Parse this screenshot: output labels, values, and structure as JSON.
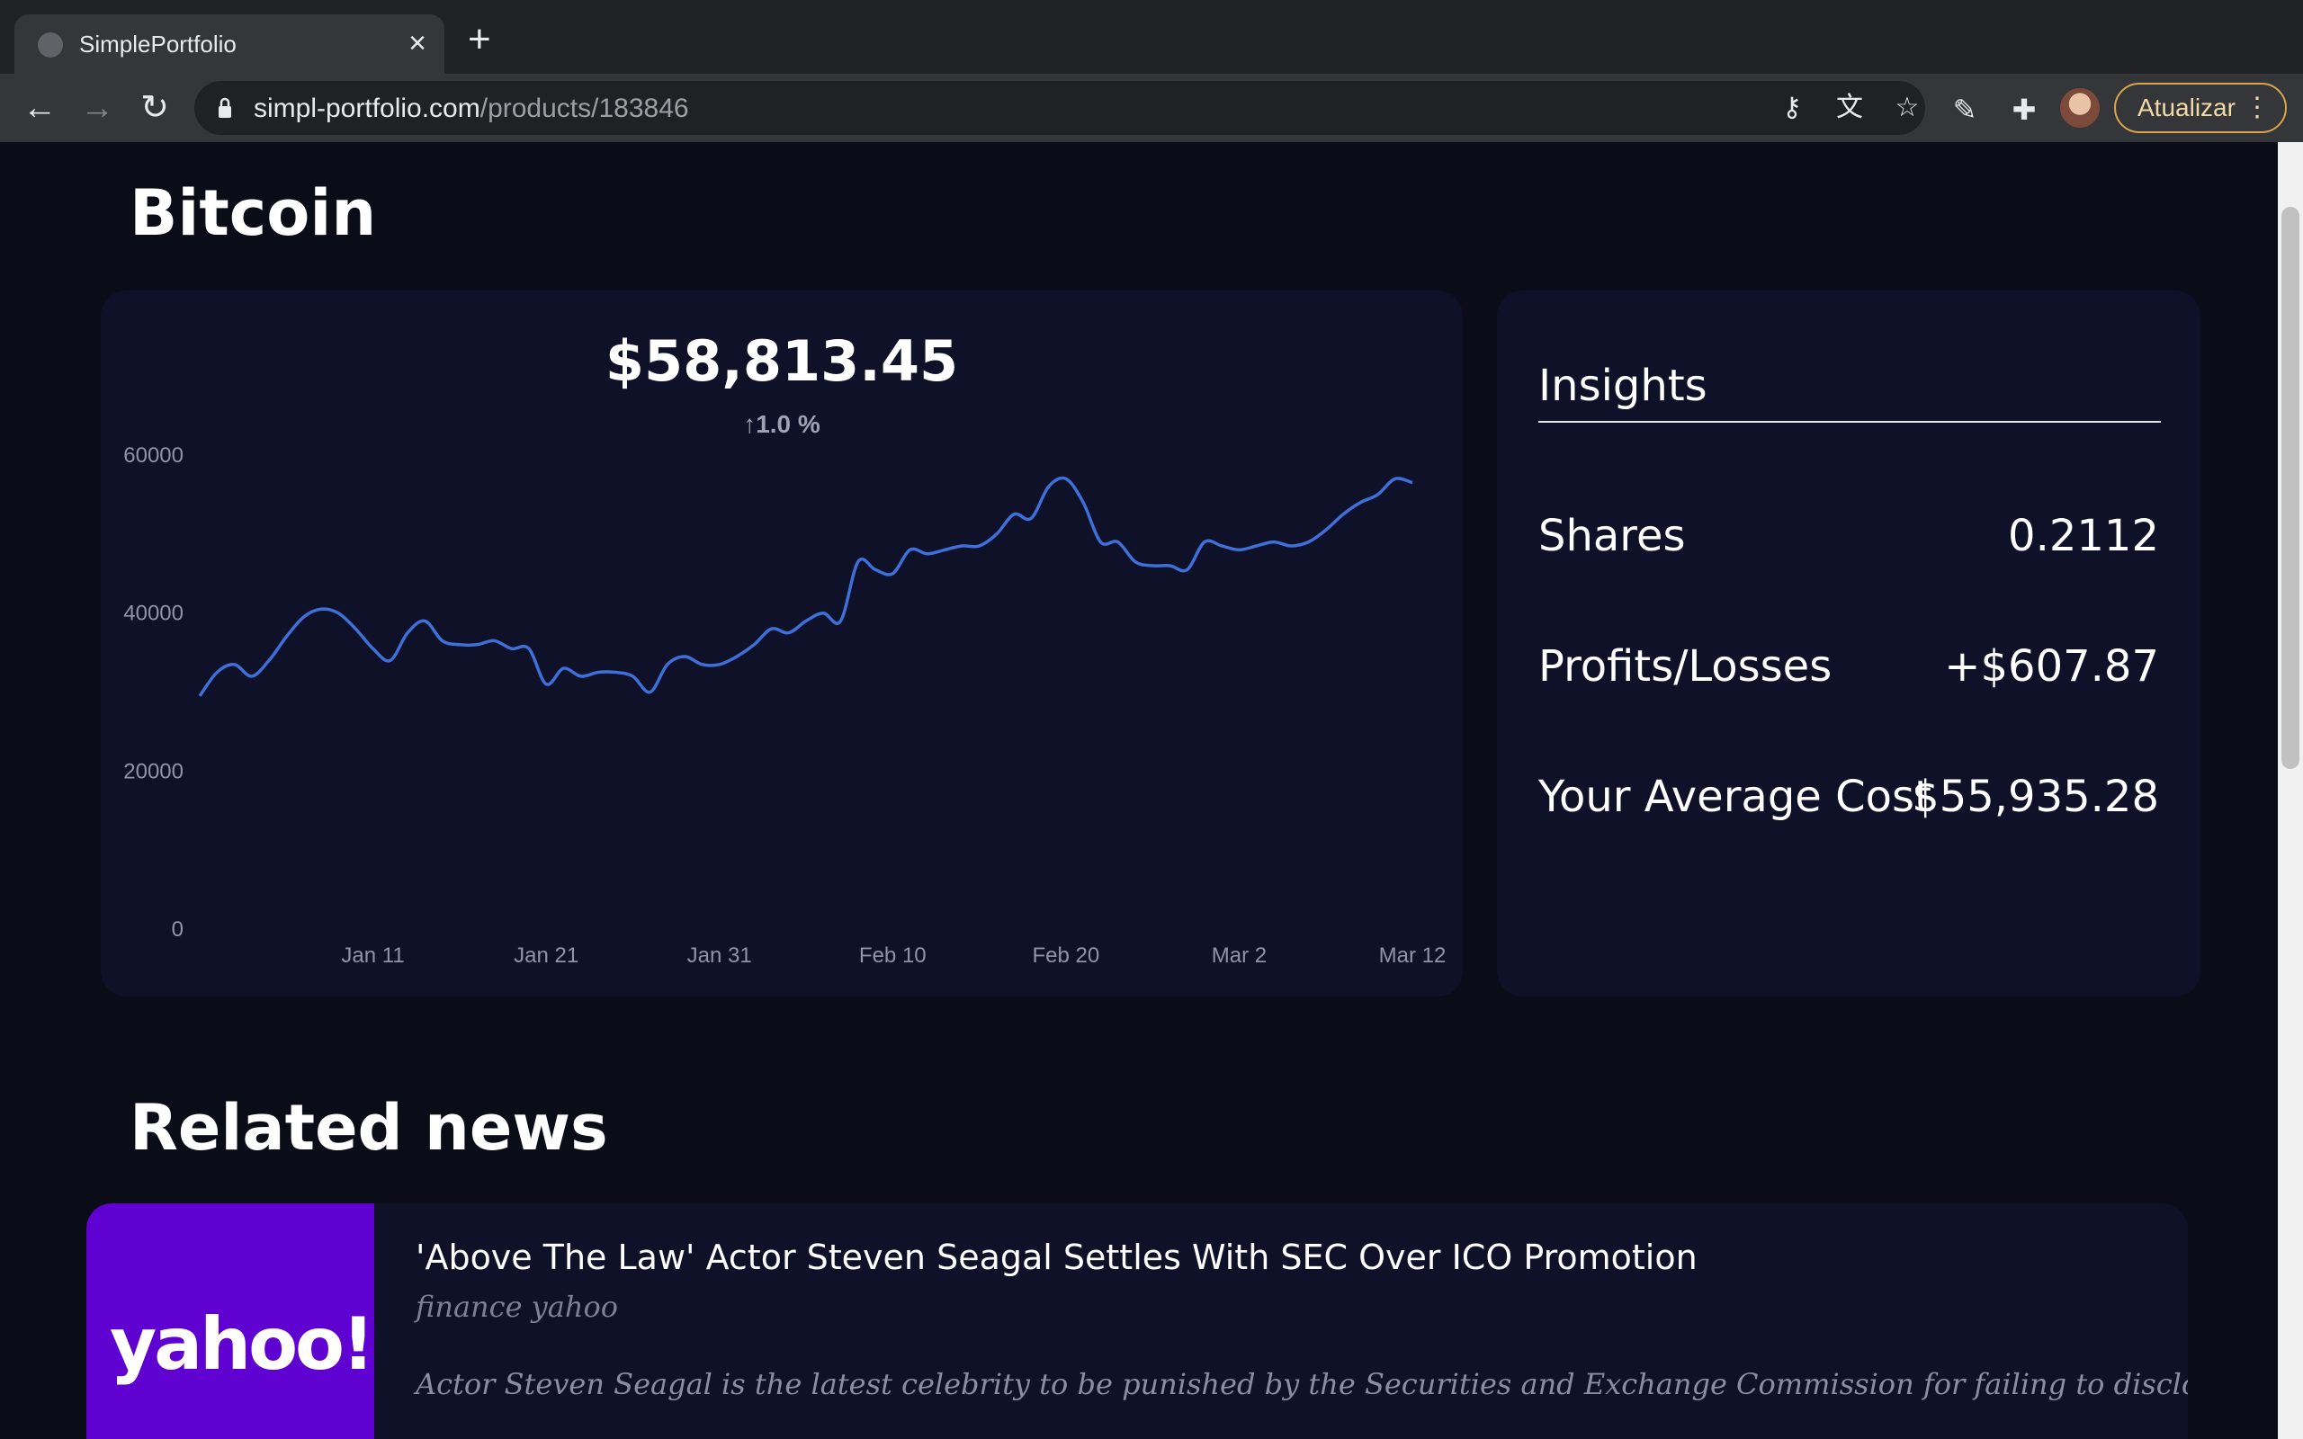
{
  "browser": {
    "tab_title": "SimplePortfolio",
    "url_host": "simpl-portfolio.com",
    "url_path": "/products/183846",
    "update_label": "Atualizar"
  },
  "asset": {
    "name": "Bitcoin",
    "price": "$58,813.45",
    "change": "1.0 %"
  },
  "insights": {
    "title": "Insights",
    "rows": [
      {
        "label": "Shares",
        "value": "0.2112"
      },
      {
        "label": "Profits/Losses",
        "value": "+$607.87"
      },
      {
        "label": "Your Average Cost",
        "value": "$55,935.28"
      }
    ]
  },
  "news": {
    "heading": "Related news",
    "items": [
      {
        "logo": "yahoo!",
        "title": "'Above The Law' Actor Steven Seagal Settles With SEC Over ICO Promotion",
        "source": "finance yahoo",
        "summary": "Actor Steven Seagal is the latest celebrity to be punished by the Securities and Exchange Commission for failing to disclose that he was being paid to ..."
      }
    ]
  },
  "colors": {
    "line": "#3f6fd8",
    "card": "#0e1128",
    "background": "#0a0c18",
    "update_border": "#d9a74a",
    "yahoo": "#5f01d1"
  },
  "chart_data": {
    "type": "line",
    "title": "",
    "xlabel": "",
    "ylabel": "",
    "ylim": [
      0,
      60000
    ],
    "yticks": [
      "60000",
      "40000",
      "20000",
      "0"
    ],
    "xticks": [
      "Jan 11",
      "Jan 21",
      "Jan 31",
      "Feb 10",
      "Feb 20",
      "Mar 2",
      "Mar 12"
    ],
    "xtick_days": [
      10,
      20,
      30,
      40,
      50,
      60,
      70
    ],
    "x_days": [
      0,
      1,
      2,
      3,
      4,
      5,
      6,
      7,
      8,
      9,
      10,
      11,
      12,
      13,
      14,
      15,
      16,
      17,
      18,
      19,
      20,
      21,
      22,
      23,
      24,
      25,
      26,
      27,
      28,
      29,
      30,
      31,
      32,
      33,
      34,
      35,
      36,
      37,
      38,
      39,
      40,
      41,
      42,
      43,
      44,
      45,
      46,
      47,
      48,
      49,
      50,
      51,
      52,
      53,
      54,
      55,
      56,
      57,
      58,
      59,
      60,
      61,
      62,
      63,
      64,
      65,
      66,
      67,
      68,
      69,
      70
    ],
    "series": [
      {
        "values": [
          29500,
          32500,
          33500,
          32000,
          34000,
          37000,
          39500,
          40500,
          40000,
          38000,
          35500,
          34000,
          37500,
          39000,
          36500,
          36000,
          36000,
          36500,
          35500,
          35500,
          31000,
          33000,
          32000,
          32500,
          32500,
          32000,
          30000,
          33500,
          34500,
          33500,
          33500,
          34500,
          36000,
          38000,
          37500,
          39000,
          40000,
          39000,
          46500,
          45500,
          45000,
          48000,
          47500,
          48000,
          48500,
          48500,
          50000,
          52500,
          52000,
          56000,
          57000,
          54000,
          49000,
          49000,
          46500,
          46000,
          46000,
          45500,
          49000,
          48500,
          48000,
          48500,
          49000,
          48500,
          49000,
          50500,
          52500,
          54000,
          55000,
          57000,
          56500
        ]
      }
    ],
    "grid": false,
    "legend": "none"
  }
}
